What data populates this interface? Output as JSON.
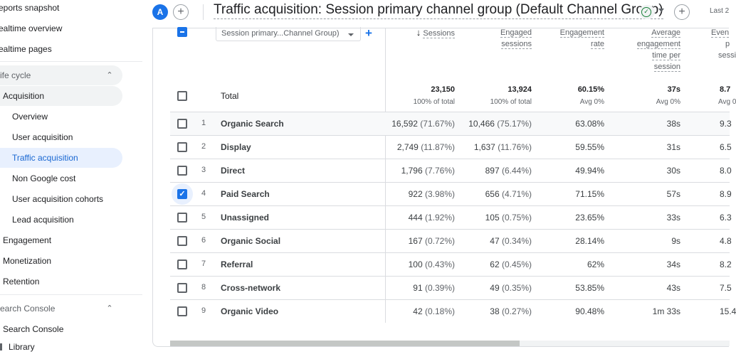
{
  "sidebar": {
    "top_items": [
      {
        "label": "eports snapshot"
      },
      {
        "label": "ealtime overview"
      },
      {
        "label": "ealtime pages"
      }
    ],
    "lifecycle": {
      "title": "ife cycle",
      "items": [
        {
          "label": "Acquisition"
        },
        {
          "label": "Overview"
        },
        {
          "label": "User acquisition"
        },
        {
          "label": "Traffic acquisition"
        },
        {
          "label": "Non Google cost"
        },
        {
          "label": "User acquisition cohorts"
        },
        {
          "label": "Lead acquisition"
        },
        {
          "label": "Engagement"
        },
        {
          "label": "Monetization"
        },
        {
          "label": "Retention"
        }
      ]
    },
    "search_console": {
      "title": "earch Console",
      "items": [
        {
          "label": "Search Console"
        }
      ]
    },
    "library": {
      "label": "Library"
    }
  },
  "header": {
    "avatar_letter": "A",
    "add_comparison_label": "+",
    "title": "Traffic acquisition: Session primary channel group (Default Channel Group)",
    "status_icon": "check-circle-icon",
    "add_button_label": "+",
    "date_label": "Last 2"
  },
  "table": {
    "dimension_selector": "Session primary...Channel Group)",
    "add_dimension_label": "+",
    "columns": [
      {
        "key": "sessions",
        "label": "Sessions",
        "sorted": "desc"
      },
      {
        "key": "engaged",
        "label_lines": [
          "Engaged",
          "sessions"
        ]
      },
      {
        "key": "eng_rate",
        "label_lines": [
          "Engagement",
          "rate"
        ]
      },
      {
        "key": "avg_time",
        "label_lines": [
          "Average",
          "engagement",
          "time per",
          "session"
        ]
      },
      {
        "key": "events",
        "label_lines": [
          "Even",
          "p",
          "sessi"
        ]
      }
    ],
    "totals": {
      "label": "Total",
      "sessions": "23,150",
      "sessions_sub": "100% of total",
      "engaged": "13,924",
      "engaged_sub": "100% of total",
      "eng_rate": "60.15%",
      "eng_rate_sub": "Avg 0%",
      "avg_time": "37s",
      "avg_time_sub": "Avg 0%",
      "events": "8.7",
      "events_sub": "Avg 0"
    },
    "rows": [
      {
        "idx": "1",
        "channel": "Organic Search",
        "sessions": "16,592",
        "sessions_pct": "(71.67%)",
        "engaged": "10,466",
        "engaged_pct": "(75.17%)",
        "eng_rate": "63.08%",
        "avg_time": "38s",
        "events": "9.3",
        "checked": false
      },
      {
        "idx": "2",
        "channel": "Display",
        "sessions": "2,749",
        "sessions_pct": "(11.87%)",
        "engaged": "1,637",
        "engaged_pct": "(11.76%)",
        "eng_rate": "59.55%",
        "avg_time": "31s",
        "events": "6.5",
        "checked": false
      },
      {
        "idx": "3",
        "channel": "Direct",
        "sessions": "1,796",
        "sessions_pct": "(7.76%)",
        "engaged": "897",
        "engaged_pct": "(6.44%)",
        "eng_rate": "49.94%",
        "avg_time": "30s",
        "events": "8.0",
        "checked": false
      },
      {
        "idx": "4",
        "channel": "Paid Search",
        "sessions": "922",
        "sessions_pct": "(3.98%)",
        "engaged": "656",
        "engaged_pct": "(4.71%)",
        "eng_rate": "71.15%",
        "avg_time": "57s",
        "events": "8.9",
        "checked": true
      },
      {
        "idx": "5",
        "channel": "Unassigned",
        "sessions": "444",
        "sessions_pct": "(1.92%)",
        "engaged": "105",
        "engaged_pct": "(0.75%)",
        "eng_rate": "23.65%",
        "avg_time": "33s",
        "events": "6.3",
        "checked": false
      },
      {
        "idx": "6",
        "channel": "Organic Social",
        "sessions": "167",
        "sessions_pct": "(0.72%)",
        "engaged": "47",
        "engaged_pct": "(0.34%)",
        "eng_rate": "28.14%",
        "avg_time": "9s",
        "events": "4.8",
        "checked": false
      },
      {
        "idx": "7",
        "channel": "Referral",
        "sessions": "100",
        "sessions_pct": "(0.43%)",
        "engaged": "62",
        "engaged_pct": "(0.45%)",
        "eng_rate": "62%",
        "avg_time": "34s",
        "events": "8.2",
        "checked": false
      },
      {
        "idx": "8",
        "channel": "Cross-network",
        "sessions": "91",
        "sessions_pct": "(0.39%)",
        "engaged": "49",
        "engaged_pct": "(0.35%)",
        "eng_rate": "53.85%",
        "avg_time": "43s",
        "events": "7.5",
        "checked": false
      },
      {
        "idx": "9",
        "channel": "Organic Video",
        "sessions": "42",
        "sessions_pct": "(0.18%)",
        "engaged": "38",
        "engaged_pct": "(0.27%)",
        "eng_rate": "90.48%",
        "avg_time": "1m 33s",
        "events": "15.4",
        "checked": false
      }
    ]
  },
  "colors": {
    "accent": "#1a73e8",
    "active_bg": "#e8f0fe",
    "active_text": "#1967d2"
  }
}
